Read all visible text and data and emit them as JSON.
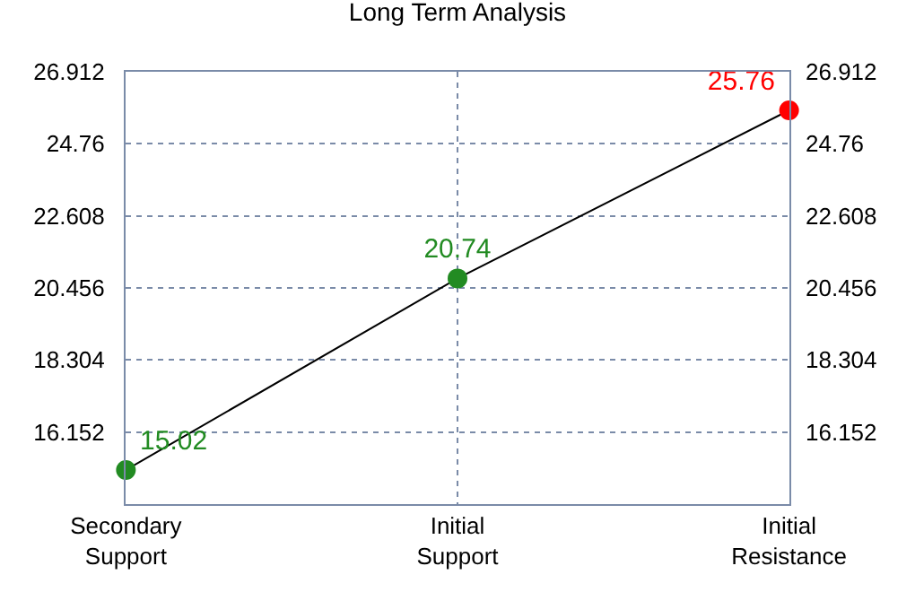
{
  "chart_data": {
    "type": "line",
    "title": "Long Term Analysis",
    "categories": [
      "Secondary\nSupport",
      "Initial\nSupport",
      "Initial\nResistance"
    ],
    "series": [
      {
        "color": "#000000",
        "colors": [
          "#228b22",
          "#228b22",
          "#ff0000"
        ],
        "values": [
          15.02,
          20.74,
          25.76
        ]
      }
    ],
    "ylim": [
      14.0,
      26.912
    ],
    "yticks": [
      16.152,
      18.304,
      20.456,
      22.608,
      24.76,
      26.912
    ],
    "y2lim": [
      14.0,
      26.912
    ],
    "y2ticks": [
      16.152,
      18.304,
      20.456,
      22.608,
      24.76,
      26.912
    ],
    "marker": "circle",
    "line_style": "solid",
    "grid": true,
    "data_labels": true
  }
}
